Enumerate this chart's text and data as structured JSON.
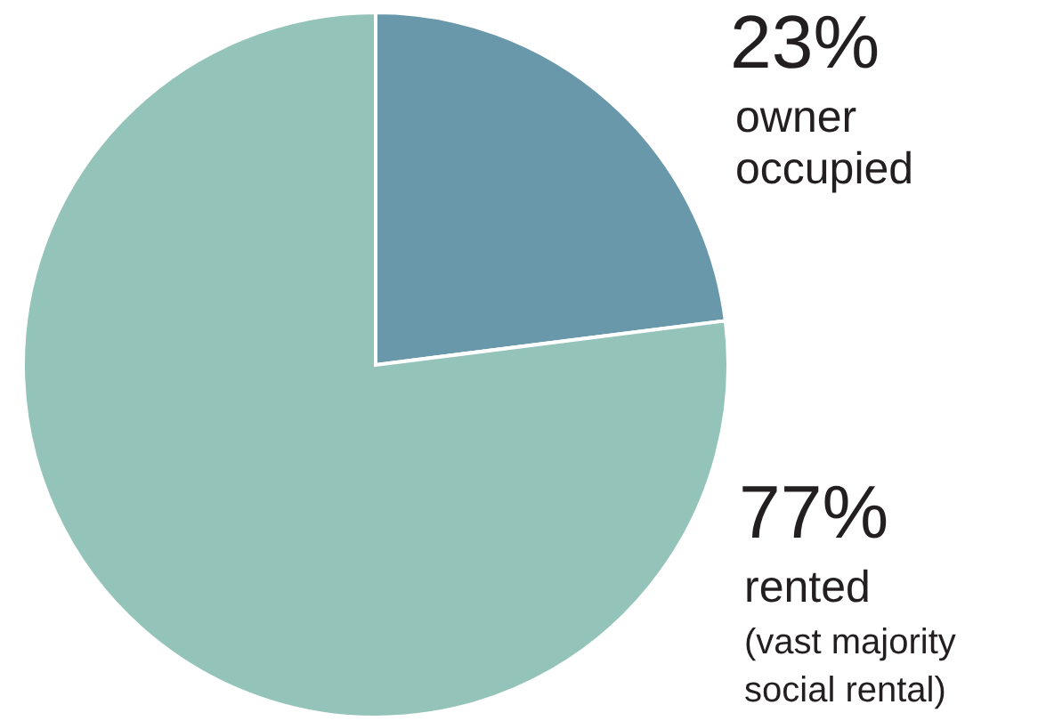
{
  "chart_data": {
    "type": "pie",
    "categories": [
      "owner occupied",
      "rented (vast majority social rental)"
    ],
    "values": [
      23,
      77
    ],
    "colors": [
      "#6a98ab",
      "#93c3b9"
    ],
    "value_labels": [
      "23%",
      "77%"
    ]
  }
}
